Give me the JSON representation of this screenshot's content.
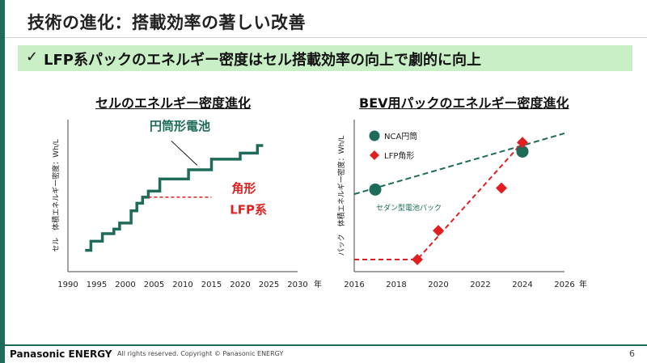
{
  "slide": {
    "title": "技術の進化：搭載効率の著しい改善",
    "banner_check": "✓",
    "banner_text": "LFP系パックのエネルギー密度はセル搭載効率の向上で劇的に向上"
  },
  "footer": {
    "logo": "Panasonic ENERGY",
    "copyright": "All rights reserved. Copyright © Panasonic ENERGY",
    "page_number": "6"
  },
  "colors": {
    "green": "#1d6b58",
    "red": "#e02020",
    "banner": "#c9efc6"
  },
  "chart_data": [
    {
      "type": "line",
      "title": "セルのエネルギー密度進化",
      "ylabel": "セル　体積エネルギー密度：Wh/L",
      "x_unit": "年",
      "xlim": [
        1990,
        2030
      ],
      "xticks": [
        1990,
        1995,
        2000,
        2005,
        2010,
        2015,
        2020,
        2025,
        2030
      ],
      "ylim": [
        0,
        100
      ],
      "grid": false,
      "series": [
        {
          "name": "円筒形電池",
          "style": "step-solid",
          "color": "#1d6b58",
          "points": [
            [
              1993,
              14
            ],
            [
              1994,
              14
            ],
            [
              1994,
              20
            ],
            [
              1996,
              20
            ],
            [
              1996,
              25
            ],
            [
              1998,
              25
            ],
            [
              1998,
              28
            ],
            [
              1999,
              28
            ],
            [
              1999,
              32
            ],
            [
              2001,
              32
            ],
            [
              2001,
              40
            ],
            [
              2002,
              40
            ],
            [
              2002,
              45
            ],
            [
              2003,
              45
            ],
            [
              2003,
              49
            ],
            [
              2004,
              49
            ],
            [
              2004,
              53
            ],
            [
              2006,
              53
            ],
            [
              2006,
              61
            ],
            [
              2011,
              61
            ],
            [
              2011,
              67
            ],
            [
              2015,
              67
            ],
            [
              2015,
              74
            ],
            [
              2020,
              74
            ],
            [
              2020,
              78
            ],
            [
              2023,
              78
            ],
            [
              2023,
              83
            ],
            [
              2024,
              83
            ]
          ]
        },
        {
          "name": "角形 LFP系",
          "style": "dashed",
          "color": "#e02020",
          "points": [
            [
              2004,
              49
            ],
            [
              2015,
              49
            ]
          ]
        }
      ],
      "annotations": [
        {
          "text": "円筒形電池"
        },
        {
          "text": "角形"
        },
        {
          "text": "LFP系"
        }
      ]
    },
    {
      "type": "scatter",
      "title": "BEV用パックのエネルギー密度進化",
      "ylabel": "パック　体積エネルギー密度：Wh/L",
      "x_unit": "年",
      "xlim": [
        2016,
        2026
      ],
      "xticks": [
        2016,
        2018,
        2020,
        2022,
        2024,
        2026
      ],
      "ylim": [
        0,
        100
      ],
      "grid": false,
      "legend_position": "top-left",
      "series": [
        {
          "name": "NCA円筒",
          "marker": "circle",
          "color": "#1d6b58",
          "points": [
            [
              2017,
              54
            ],
            [
              2024,
              79
            ]
          ],
          "trend": [
            [
              2016,
              51
            ],
            [
              2026,
              91
            ]
          ]
        },
        {
          "name": "LFP角形",
          "marker": "diamond",
          "color": "#e02020",
          "points": [
            [
              2019,
              8
            ],
            [
              2020,
              27
            ],
            [
              2023,
              55
            ],
            [
              2024,
              85
            ]
          ],
          "trend": [
            [
              2016,
              8
            ],
            [
              2019,
              8
            ],
            [
              2024,
              85
            ]
          ]
        }
      ],
      "annotations": [
        {
          "text": "セダン型電池パック"
        }
      ]
    }
  ]
}
